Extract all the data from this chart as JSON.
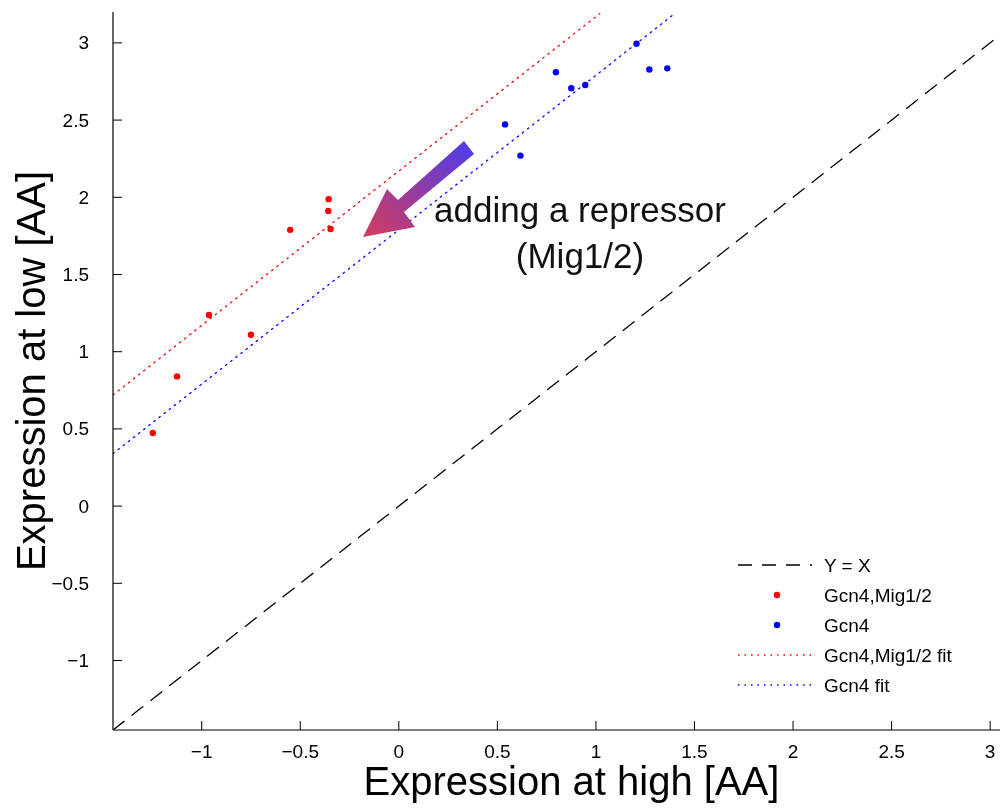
{
  "chart_data": {
    "type": "scatter",
    "xlabel": "Expression at high [AA]",
    "ylabel": "Expression at low [AA]",
    "xlim": [
      -1.45,
      3.05
    ],
    "ylim": [
      -1.45,
      3.2
    ],
    "xticks": [
      {
        "value": -1,
        "label": "−1"
      },
      {
        "value": -0.5,
        "label": "−0.5"
      },
      0,
      0.5,
      1,
      1.5,
      2,
      2.5,
      3
    ],
    "yticks": [
      {
        "value": -1,
        "label": "−1"
      },
      {
        "value": -0.5,
        "label": "−0.5"
      },
      0,
      0.5,
      1,
      1.5,
      2,
      2.5,
      3
    ],
    "grid": false,
    "legend": "bottom right",
    "annotations": [
      "adding a repressor\n(Mig1/2)"
    ],
    "series": [
      {
        "name": "Y = X",
        "type": "line",
        "color": "#000000",
        "line_style": "dashed",
        "marker": "none",
        "x": [
          -1.45,
          3.02
        ],
        "values": [
          -1.45,
          3.02
        ]
      },
      {
        "name": "Gcn4,Mig1/2",
        "color": "#ff0000",
        "marker": "circle",
        "x": [
          -1.248,
          -1.125,
          -0.963,
          -0.75,
          -0.551,
          -0.356,
          -0.358,
          -0.346
        ],
        "values": [
          0.473,
          0.84,
          1.238,
          1.11,
          1.789,
          1.988,
          1.912,
          1.795
        ]
      },
      {
        "name": "Gcn4",
        "color": "#0000ff",
        "marker": "circle",
        "x": [
          0.539,
          0.617,
          0.797,
          0.875,
          0.946,
          1.206,
          1.271,
          1.362
        ],
        "values": [
          2.472,
          2.27,
          2.81,
          2.706,
          2.727,
          2.995,
          2.828,
          2.835
        ]
      },
      {
        "name": "Gcn4,Mig1/2 fit",
        "type": "line",
        "color": "#ff0000",
        "line_style": "dotted",
        "marker": "none",
        "x": [
          -1.45,
          1.02
        ],
        "values": [
          0.72,
          3.19
        ]
      },
      {
        "name": "Gcn4 fit",
        "type": "line",
        "color": "#0000ff",
        "line_style": "dotted",
        "marker": "none",
        "x": [
          -1.45,
          1.4
        ],
        "values": [
          0.34,
          3.19
        ]
      }
    ]
  }
}
